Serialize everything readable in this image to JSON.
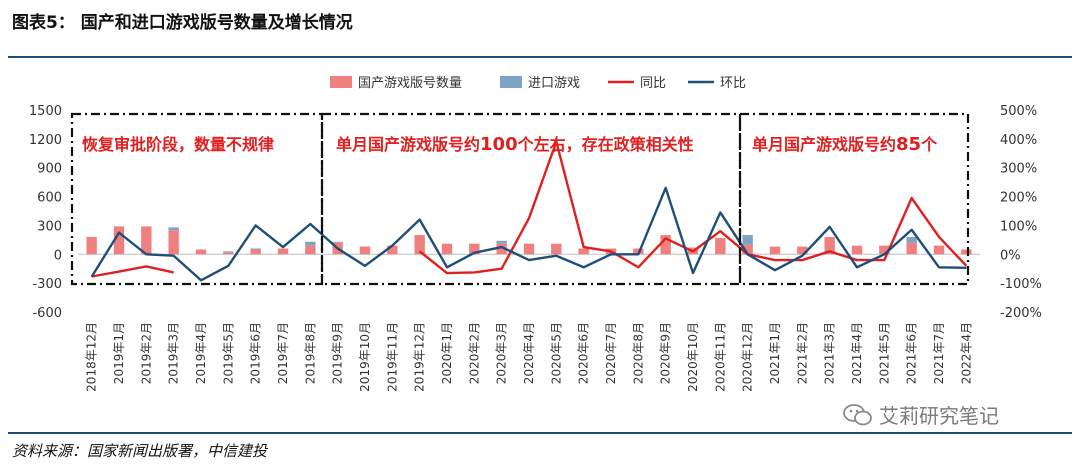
{
  "figure": {
    "title": "图表5：   国产和进口游戏版号数量及增长情况",
    "source": "资料来源：国家新闻出版署，中信建投",
    "watermark": "艾莉研究笔记"
  },
  "chart_data": {
    "type": "bar",
    "categories": [
      "2018年12月",
      "2019年1月",
      "2019年2月",
      "2019年3月",
      "2019年4月",
      "2019年5月",
      "2019年6月",
      "2019年7月",
      "2019年8月",
      "2019年9月",
      "2019年10月",
      "2019年11月",
      "2019年12月",
      "2020年1月",
      "2020年2月",
      "2020年3月",
      "2020年4月",
      "2020年5月",
      "2020年6月",
      "2020年7月",
      "2020年8月",
      "2020年9月",
      "2020年10月",
      "2020年11月",
      "2020年12月",
      "2021年1月",
      "2021年2月",
      "2021年3月",
      "2021年4月",
      "2021年5月",
      "2021年6月",
      "2021年7月",
      "2022年4月"
    ],
    "series": [
      {
        "name": "国产游戏版号数量",
        "type": "bar",
        "axis": "left",
        "color": "#f08080",
        "values": [
          180,
          290,
          290,
          250,
          50,
          20,
          50,
          60,
          90,
          120,
          80,
          90,
          200,
          110,
          110,
          110,
          110,
          110,
          60,
          60,
          60,
          200,
          70,
          170,
          100,
          80,
          80,
          180,
          90,
          90,
          120,
          90,
          50
        ]
      },
      {
        "name": "进口游戏",
        "type": "bar",
        "axis": "left",
        "color": "#7fa3c3",
        "values": [
          0,
          0,
          0,
          30,
          0,
          10,
          10,
          0,
          40,
          10,
          0,
          0,
          0,
          0,
          0,
          30,
          0,
          0,
          0,
          0,
          0,
          0,
          0,
          0,
          100,
          0,
          0,
          0,
          0,
          0,
          60,
          0,
          0
        ]
      },
      {
        "name": "同比",
        "type": "line",
        "axis": "right",
        "color": "#e02020",
        "values": [
          -77,
          -60,
          -42,
          -63,
          null,
          null,
          null,
          null,
          null,
          null,
          null,
          null,
          10,
          -65,
          -63,
          -50,
          125,
          390,
          25,
          10,
          -45,
          55,
          10,
          80,
          0,
          -20,
          -20,
          10,
          -20,
          -20,
          195,
          60,
          -40
        ]
      },
      {
        "name": "环比",
        "type": "line",
        "axis": "right",
        "color": "#1f4e79",
        "values": [
          -78,
          75,
          0,
          -5,
          -90,
          -40,
          100,
          25,
          105,
          20,
          -40,
          30,
          120,
          -45,
          5,
          25,
          -20,
          -5,
          -45,
          0,
          0,
          230,
          -65,
          145,
          0,
          -55,
          -5,
          95,
          -45,
          0,
          85,
          -45,
          -47
        ]
      }
    ],
    "yaxis_left": {
      "min": -600,
      "max": 1500,
      "ticks": [
        "1500",
        "1200",
        "900",
        "600",
        "300",
        "0",
        "-300",
        "-600"
      ]
    },
    "yaxis_right": {
      "min": -200,
      "max": 500,
      "ticks": [
        "500%",
        "400%",
        "300%",
        "200%",
        "100%",
        "0%",
        "-100%",
        "-200%"
      ]
    },
    "legend_position": "top-center",
    "annotations": [
      {
        "text": "恢复审批阶段，数量不规律",
        "color": "#e02020"
      },
      {
        "text": "单月国产游戏版号约",
        "highlight": "100",
        "tail": "个左右，存在政策相关性",
        "color": "#e02020"
      },
      {
        "text": "单月国产游戏版号约",
        "highlight": "85",
        "tail": "个",
        "color": "#e02020"
      }
    ]
  }
}
